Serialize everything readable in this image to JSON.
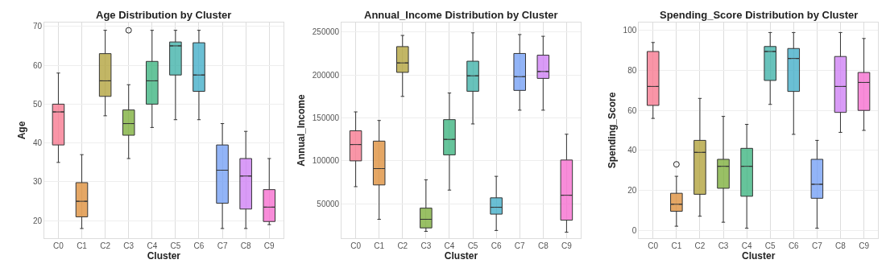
{
  "chart_data": [
    {
      "type": "box",
      "title": "Age Distribution by Cluster",
      "xlabel": "Cluster",
      "ylabel": "Age",
      "grid": true,
      "ylim": [
        15.5,
        71
      ],
      "yticks": [
        20,
        30,
        40,
        50,
        60,
        70
      ],
      "categories": [
        "C0",
        "C1",
        "C2",
        "C3",
        "C4",
        "C5",
        "C6",
        "C7",
        "C8",
        "C9"
      ],
      "colors": [
        "#f77189",
        "#dc8932",
        "#ae9d31",
        "#77ab31",
        "#33b07a",
        "#36ada4",
        "#38a9c5",
        "#6e9bf4",
        "#cc7af4",
        "#f565cc"
      ],
      "boxes": [
        {
          "low": 35,
          "q1": 39.5,
          "median": 48,
          "q3": 50,
          "high": 58
        },
        {
          "low": 18,
          "q1": 21,
          "median": 25,
          "q3": 29.8,
          "high": 37
        },
        {
          "low": 47,
          "q1": 52,
          "median": 56,
          "q3": 63,
          "high": 69
        },
        {
          "low": 36,
          "q1": 42,
          "median": 45,
          "q3": 48.5,
          "high": 55,
          "outliers": [
            69
          ]
        },
        {
          "low": 44,
          "q1": 50,
          "median": 56,
          "q3": 61,
          "high": 69
        },
        {
          "low": 46,
          "q1": 57.5,
          "median": 65,
          "q3": 66,
          "high": 69
        },
        {
          "low": 46,
          "q1": 53.3,
          "median": 57.5,
          "q3": 65.8,
          "high": 69
        },
        {
          "low": 18,
          "q1": 24.5,
          "median": 33,
          "q3": 39.5,
          "high": 45
        },
        {
          "low": 18,
          "q1": 23,
          "median": 31.5,
          "q3": 36,
          "high": 43
        },
        {
          "low": 19,
          "q1": 19.8,
          "median": 23.5,
          "q3": 28,
          "high": 36
        }
      ]
    },
    {
      "type": "box",
      "title": "Annual_Income Distribution by Cluster",
      "xlabel": "Cluster",
      "ylabel": "Annual_Income",
      "grid": true,
      "ylim": [
        10000,
        261000
      ],
      "yticks": [
        50000,
        100000,
        150000,
        200000,
        250000
      ],
      "categories": [
        "C0",
        "C1",
        "C2",
        "C3",
        "C4",
        "C5",
        "C6",
        "C7",
        "C8",
        "C9"
      ],
      "colors": [
        "#f77189",
        "#dc8932",
        "#ae9d31",
        "#77ab31",
        "#33b07a",
        "#36ada4",
        "#38a9c5",
        "#6e9bf4",
        "#cc7af4",
        "#f565cc"
      ],
      "boxes": [
        {
          "low": 70000,
          "q1": 100000,
          "median": 119000,
          "q3": 135000,
          "high": 157000
        },
        {
          "low": 32000,
          "q1": 72000,
          "median": 91000,
          "q3": 123000,
          "high": 147000
        },
        {
          "low": 175000,
          "q1": 203000,
          "median": 214000,
          "q3": 233000,
          "high": 246000
        },
        {
          "low": 18000,
          "q1": 22000,
          "median": 32000,
          "q3": 45000,
          "high": 78000
        },
        {
          "low": 66000,
          "q1": 107000,
          "median": 125000,
          "q3": 148000,
          "high": 179000
        },
        {
          "low": 143000,
          "q1": 181000,
          "median": 199000,
          "q3": 216000,
          "high": 249000
        },
        {
          "low": 19000,
          "q1": 38000,
          "median": 46000,
          "q3": 57000,
          "high": 82000
        },
        {
          "low": 159000,
          "q1": 182000,
          "median": 198000,
          "q3": 225000,
          "high": 247000
        },
        {
          "low": 159000,
          "q1": 196000,
          "median": 204000,
          "q3": 223000,
          "high": 245000
        },
        {
          "low": 17000,
          "q1": 31000,
          "median": 60000,
          "q3": 101000,
          "high": 131000
        }
      ]
    },
    {
      "type": "box",
      "title": "Spending_Score Distribution by Cluster",
      "xlabel": "Cluster",
      "ylabel": "Spending_Score",
      "grid": true,
      "ylim": [
        -4,
        104
      ],
      "yticks": [
        0,
        20,
        40,
        60,
        80,
        100
      ],
      "categories": [
        "C0",
        "C1",
        "C2",
        "C3",
        "C4",
        "C5",
        "C6",
        "C7",
        "C8",
        "C9"
      ],
      "colors": [
        "#f77189",
        "#dc8932",
        "#ae9d31",
        "#77ab31",
        "#33b07a",
        "#36ada4",
        "#38a9c5",
        "#6e9bf4",
        "#cc7af4",
        "#f565cc"
      ],
      "boxes": [
        {
          "low": 56,
          "q1": 62.5,
          "median": 72,
          "q3": 89.5,
          "high": 94
        },
        {
          "low": 2,
          "q1": 9.5,
          "median": 13,
          "q3": 18.5,
          "high": 27,
          "outliers": [
            33
          ]
        },
        {
          "low": 7,
          "q1": 18,
          "median": 39,
          "q3": 45,
          "high": 66
        },
        {
          "low": 4,
          "q1": 21,
          "median": 32,
          "q3": 35.5,
          "high": 57
        },
        {
          "low": 1,
          "q1": 17,
          "median": 32,
          "q3": 41,
          "high": 53
        },
        {
          "low": 63,
          "q1": 75,
          "median": 89.5,
          "q3": 92,
          "high": 99
        },
        {
          "low": 48,
          "q1": 69.5,
          "median": 86,
          "q3": 91,
          "high": 99
        },
        {
          "low": 1,
          "q1": 16,
          "median": 23,
          "q3": 35.5,
          "high": 45
        },
        {
          "low": 49,
          "q1": 59,
          "median": 72,
          "q3": 87,
          "high": 99
        },
        {
          "low": 50,
          "q1": 60,
          "median": 74,
          "q3": 79,
          "high": 96
        }
      ]
    }
  ]
}
